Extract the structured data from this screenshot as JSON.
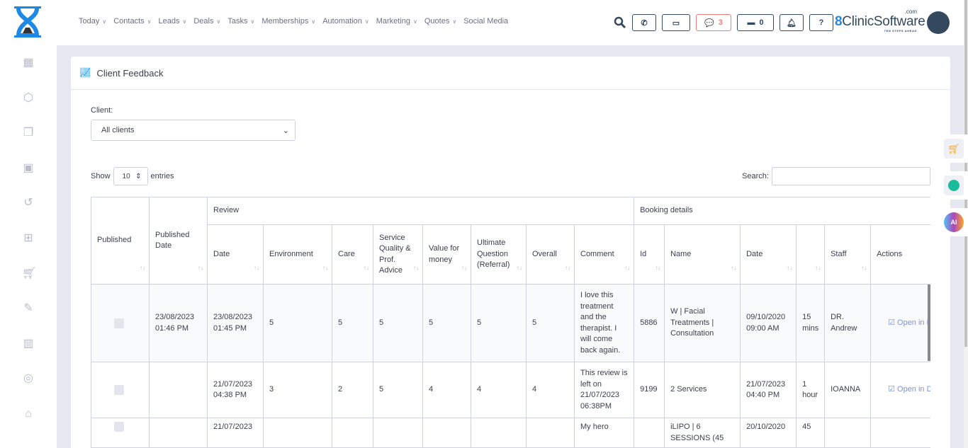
{
  "nav": [
    {
      "label": "Today",
      "dropdown": true
    },
    {
      "label": "Contacts",
      "dropdown": true
    },
    {
      "label": "Leads",
      "dropdown": true
    },
    {
      "label": "Deals",
      "dropdown": true
    },
    {
      "label": "Tasks",
      "dropdown": true
    },
    {
      "label": "Memberships",
      "dropdown": true
    },
    {
      "label": "Automation",
      "dropdown": true
    },
    {
      "label": "Marketing",
      "dropdown": true
    },
    {
      "label": "Quotes",
      "dropdown": true
    },
    {
      "label": "Social Media",
      "dropdown": false
    }
  ],
  "toolbar": {
    "messages_count": "3",
    "store_count": "0"
  },
  "brand": {
    "name": "ClinicSoftware",
    "suffix": ".com",
    "tagline": "TEN STEPS AHEAD"
  },
  "colors": {
    "accent": "#1e88e5",
    "dark": "#34495e",
    "alert": "#f07b7b",
    "link": "#7c93e0"
  },
  "sidebar": [
    "calendar-icon",
    "box-icon",
    "layers-icon",
    "bag-icon",
    "history-icon",
    "gift-icon",
    "cart-icon",
    "tag-icon",
    "report-icon",
    "user-circle-icon",
    "lock-icon"
  ],
  "page": {
    "title": "Client Feedback",
    "client_label": "Client:",
    "client_value": "All clients",
    "show_label": "Show",
    "entries_value": "10",
    "entries_label": "entries",
    "search_label": "Search:",
    "search_value": ""
  },
  "table": {
    "groups": {
      "review": "Review",
      "booking": "Booking details"
    },
    "headers": {
      "published": "Published",
      "published_date": "Published Date",
      "date": "Date",
      "environment": "Environment",
      "care": "Care",
      "service": "Service Quality & Prof. Advice",
      "value": "Value for money",
      "ultimate": "Ultimate Question (Referral)",
      "overall": "Overall",
      "comment": "Comment",
      "id": "Id",
      "name": "Name",
      "bdate": "Date",
      "duration": "",
      "staff": "Staff",
      "actions": "Actions"
    },
    "rows": [
      {
        "published_date": "23/08/2023 01:46 PM",
        "date": "23/08/2023 01:45 PM",
        "environment": "5",
        "care": "5",
        "service": "5",
        "value": "5",
        "ultimate": "5",
        "overall": "5",
        "comment": "I love this treatment and the therapist. I will come back again.",
        "id": "5886",
        "name": "W | Facial Treatments | Consultation",
        "bdate": "09/10/2020 09:00 AM",
        "duration": "15 mins",
        "staff": "DR. Andrew",
        "action": "Open in D"
      },
      {
        "published_date": "",
        "date": "21/07/2023 04:38 PM",
        "environment": "3",
        "care": "2",
        "service": "5",
        "value": "4",
        "ultimate": "4",
        "overall": "4",
        "comment": "This review is left on 21/07/2023 06:38PM",
        "id": "9199",
        "name": "2 Services",
        "bdate": "21/07/2023 04:40 PM",
        "duration": "1 hour",
        "staff": "IOANNA",
        "action": "Open in D"
      },
      {
        "published_date": "",
        "date": "21/07/2023",
        "environment": "",
        "care": "",
        "service": "",
        "value": "",
        "ultimate": "",
        "overall": "",
        "comment": "My hero",
        "id": "",
        "name": "iLIPO | 6 SESSIONS (45",
        "bdate": "20/10/2020",
        "duration": "45",
        "staff": "",
        "action": ""
      }
    ]
  }
}
